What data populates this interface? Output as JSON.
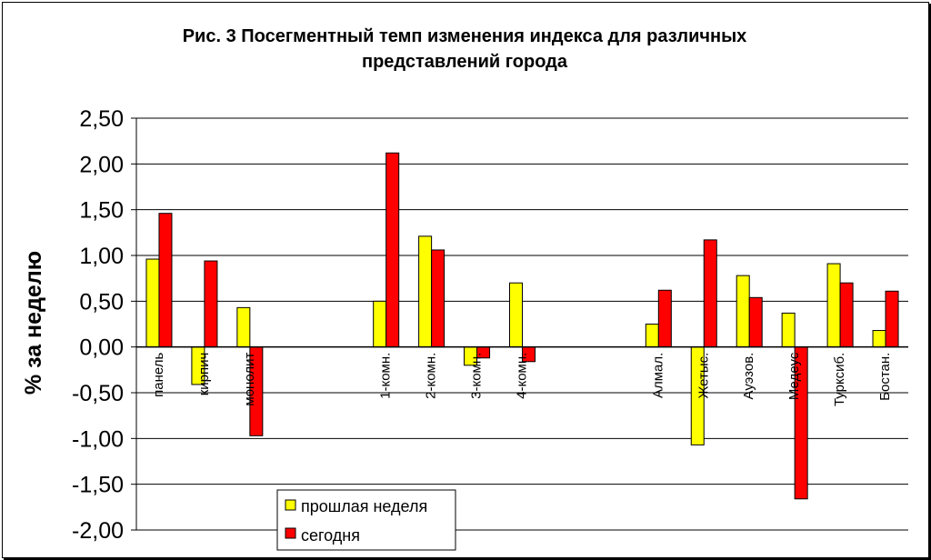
{
  "chart_data": {
    "type": "bar",
    "title_line1": "Рис. 3 Посегментный темп изменения индекса для различных",
    "title_line2": "представлений города",
    "ylabel": "% за неделю",
    "xlabel": "",
    "ylim": [
      -2.0,
      2.5
    ],
    "ytick_step": 0.5,
    "ytick_labels": [
      "2,50",
      "2,00",
      "1,50",
      "1,00",
      "0,50",
      "0,00",
      "-0,50",
      "-1,00",
      "-1,50",
      "-2,00"
    ],
    "grid": true,
    "legend_position": "bottom-left",
    "categories": [
      "панель",
      "кирпич",
      "монолит",
      "",
      "",
      "1-комн.",
      "2-комн.",
      "3-комн.",
      "4-комн.",
      "",
      "",
      "Алмал.",
      "Жетыс.",
      "Ауэзов.",
      "Медеус",
      "Турксиб.",
      "Бостан."
    ],
    "series": [
      {
        "name": "прошлая неделя",
        "color": "#ffff00",
        "values": [
          0.96,
          -0.41,
          0.43,
          null,
          null,
          0.5,
          1.21,
          -0.2,
          0.7,
          null,
          null,
          0.25,
          -1.07,
          0.78,
          0.37,
          0.91,
          0.18
        ]
      },
      {
        "name": "сегодня",
        "color": "#ff0000",
        "values": [
          1.46,
          0.94,
          -0.97,
          null,
          null,
          2.12,
          1.06,
          -0.12,
          -0.16,
          null,
          null,
          0.62,
          1.17,
          0.54,
          -1.66,
          0.7,
          0.61
        ]
      }
    ]
  }
}
